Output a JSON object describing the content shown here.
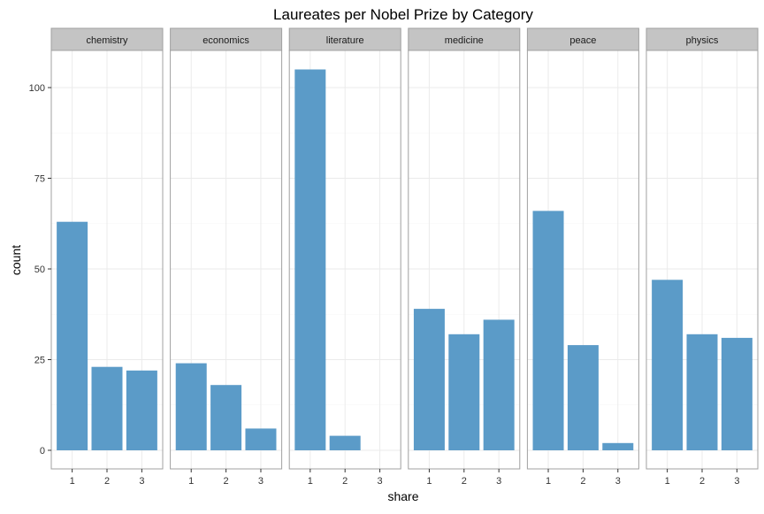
{
  "chart_data": {
    "type": "bar",
    "title": "Laureates per Nobel Prize by Category",
    "xlabel": "share",
    "ylabel": "count",
    "x_categories": [
      "1",
      "2",
      "3"
    ],
    "ylim": [
      0,
      110
    ],
    "y_ticks": [
      0,
      25,
      50,
      75,
      100
    ],
    "grid": true,
    "bar_color": "#5b9bc8",
    "facets": [
      {
        "name": "chemistry",
        "values": [
          63,
          23,
          22
        ]
      },
      {
        "name": "economics",
        "values": [
          24,
          18,
          6
        ]
      },
      {
        "name": "literature",
        "values": [
          105,
          4,
          0
        ]
      },
      {
        "name": "medicine",
        "values": [
          39,
          32,
          36
        ]
      },
      {
        "name": "peace",
        "values": [
          66,
          29,
          2
        ]
      },
      {
        "name": "physics",
        "values": [
          47,
          32,
          31
        ]
      }
    ]
  }
}
